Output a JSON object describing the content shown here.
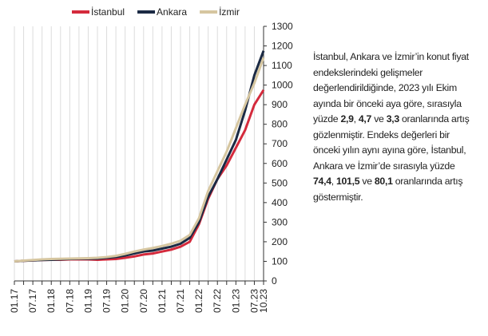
{
  "chart_data": {
    "type": "line",
    "categories": [
      "01.17",
      null,
      "07.17",
      null,
      "01.18",
      null,
      "07.18",
      null,
      "01.19",
      null,
      "07.19",
      null,
      "01.20",
      null,
      "07.20",
      null,
      "01.21",
      null,
      "07.21",
      null,
      "01.22",
      null,
      "07.22",
      null,
      "01.23",
      null,
      "07.23",
      "10.23"
    ],
    "series": [
      {
        "name": "İstanbul",
        "color": "#d42a3c",
        "values": [
          100,
          103,
          105,
          107,
          108,
          108,
          110,
          110,
          110,
          108,
          110,
          112,
          118,
          125,
          135,
          140,
          150,
          160,
          175,
          200,
          290,
          420,
          520,
          590,
          680,
          770,
          900,
          975
        ]
      },
      {
        "name": "Ankara",
        "color": "#1b2a44",
        "values": [
          100,
          103,
          105,
          107,
          108,
          110,
          112,
          113,
          113,
          114,
          118,
          122,
          130,
          140,
          150,
          155,
          165,
          175,
          190,
          220,
          300,
          430,
          520,
          620,
          720,
          870,
          1050,
          1175
        ]
      },
      {
        "name": "İzmir",
        "color": "#d6c6a0",
        "values": [
          100,
          104,
          107,
          110,
          112,
          113,
          114,
          115,
          116,
          118,
          122,
          128,
          138,
          150,
          160,
          168,
          178,
          190,
          205,
          235,
          320,
          460,
          560,
          660,
          780,
          900,
          1010,
          1140
        ]
      }
    ],
    "ylim": [
      0,
      1300
    ],
    "yticks": [
      0,
      100,
      200,
      300,
      400,
      500,
      600,
      700,
      800,
      900,
      1000,
      1100,
      1200,
      1300
    ],
    "grid": "x",
    "legend": "top"
  },
  "note": [
    "İstanbul, Ankara ve İzmir’in konut fiyat endekslerindeki gelişmeler değerlendirildiğinde, 2023 yılı Ekim ayında bir önceki aya göre, sırasıyla yüzde ",
    "2,9",
    ", ",
    "4,7",
    " ve ",
    "3,3",
    " oranlarında artış gözlenmiştir. Endeks değerleri bir önceki yılın aynı ayına göre, İstanbul, Ankara ve İzmir’de sırasıyla yüzde ",
    "74,4",
    ", ",
    "101,5",
    " ve ",
    "80,1",
    " oranlarında artış göstermiştir."
  ]
}
